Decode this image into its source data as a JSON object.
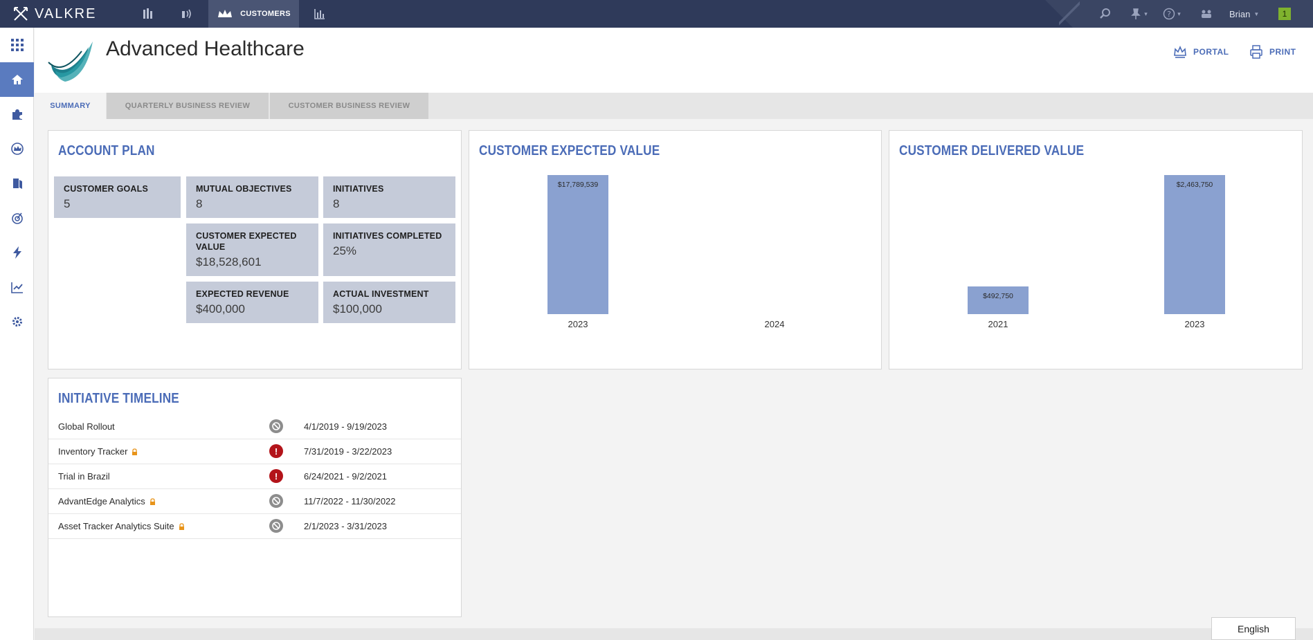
{
  "topbar": {
    "brand": "VALKRE",
    "nav_icons": [
      "buildings-icon",
      "broadcast-icon",
      "crown-icon",
      "bar-chart-icon"
    ],
    "active_nav_label": "CUSTOMERS",
    "user_name": "Brian",
    "notification_count": "1",
    "colors": {
      "bar": "#2f3a5a",
      "active": "#4a5574",
      "notification": "#7fb22e"
    }
  },
  "sidebar": {
    "items": [
      "apps-grid-icon",
      "home-icon",
      "puzzle-icon",
      "crown-circle-icon",
      "book-icon",
      "target-icon",
      "lightning-icon",
      "checklist-chart-icon",
      "gear-icon"
    ],
    "active": "home-icon",
    "accent": "#5a7bbf"
  },
  "header": {
    "title": "Advanced Healthcare",
    "portal_label": "PORTAL",
    "print_label": "PRINT"
  },
  "tabs": [
    {
      "label": "SUMMARY",
      "active": true
    },
    {
      "label": "QUARTERLY BUSINESS REVIEW",
      "active": false
    },
    {
      "label": "CUSTOMER BUSINESS REVIEW",
      "active": false
    }
  ],
  "account_plan": {
    "title": "ACCOUNT PLAN",
    "tiles": {
      "customer_goals": {
        "label": "CUSTOMER GOALS",
        "value": "5"
      },
      "mutual_objectives": {
        "label": "MUTUAL OBJECTIVES",
        "value": "8"
      },
      "initiatives": {
        "label": "INITIATIVES",
        "value": "8"
      },
      "customer_expected_value": {
        "label": "CUSTOMER EXPECTED VALUE",
        "value": "$18,528,601"
      },
      "initiatives_completed": {
        "label": "INITIATIVES COMPLETED",
        "value": "25%"
      },
      "expected_revenue": {
        "label": "EXPECTED REVENUE",
        "value": "$400,000"
      },
      "actual_investment": {
        "label": "ACTUAL INVESTMENT",
        "value": "$100,000"
      }
    }
  },
  "expected_value_panel": {
    "title": "CUSTOMER EXPECTED VALUE"
  },
  "delivered_value_panel": {
    "title": "CUSTOMER DELIVERED VALUE"
  },
  "chart_data": [
    {
      "type": "bar",
      "title": "CUSTOMER EXPECTED VALUE",
      "categories": [
        "2023",
        "2024"
      ],
      "values": [
        17789539,
        0
      ],
      "data_labels": [
        "$17,789,539",
        ""
      ],
      "ylim": [
        0,
        17789539
      ],
      "grid": false,
      "color": "#8aa1d0"
    },
    {
      "type": "bar",
      "title": "CUSTOMER DELIVERED VALUE",
      "categories": [
        "2021",
        "2023"
      ],
      "values": [
        492750,
        2463750
      ],
      "data_labels": [
        "$492,750",
        "$2,463,750"
      ],
      "ylim": [
        0,
        2463750
      ],
      "grid": false,
      "color": "#8aa1d0"
    }
  ],
  "timeline": {
    "title": "INITIATIVE TIMELINE",
    "rows": [
      {
        "name": "Global Rollout",
        "locked": false,
        "status": "blocked",
        "dates": "4/1/2019 - 9/19/2023"
      },
      {
        "name": "Inventory Tracker",
        "locked": true,
        "status": "alert",
        "dates": "7/31/2019 - 3/22/2023"
      },
      {
        "name": "Trial in Brazil",
        "locked": false,
        "status": "alert",
        "dates": "6/24/2021 - 9/2/2021"
      },
      {
        "name": "AdvantEdge Analytics",
        "locked": true,
        "status": "blocked",
        "dates": "11/7/2022 - 11/30/2022"
      },
      {
        "name": "Asset Tracker Analytics Suite",
        "locked": true,
        "status": "blocked",
        "dates": "2/1/2023 - 3/31/2023"
      }
    ]
  },
  "footer": {
    "language": "English"
  }
}
